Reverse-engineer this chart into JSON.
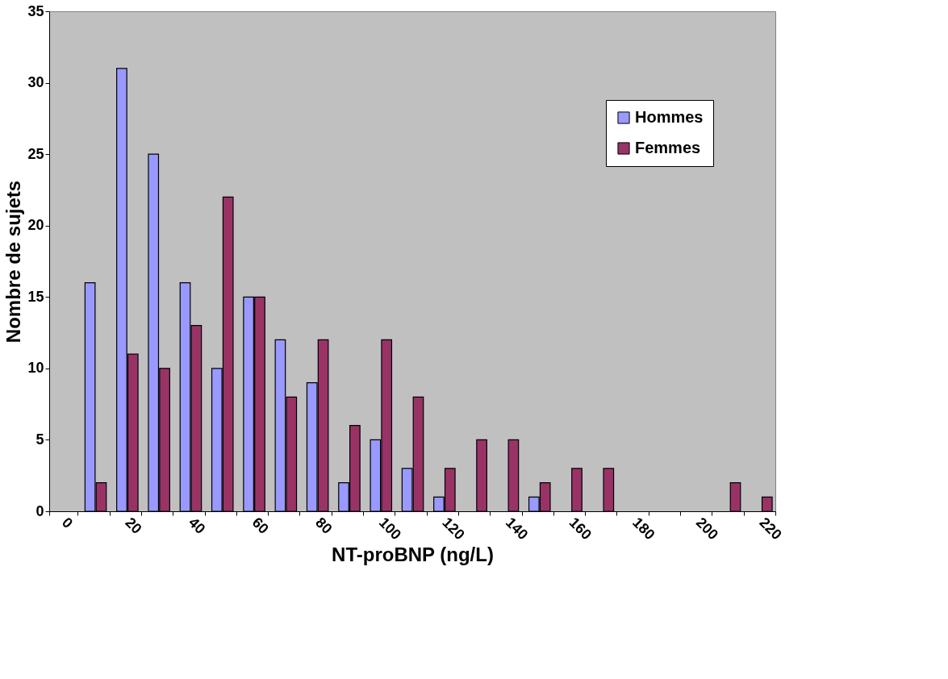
{
  "chart_data": {
    "type": "bar",
    "xlabel": "NT-proBNP (ng/L)",
    "ylabel": "Nombre de sujets",
    "categories": [
      "0",
      null,
      "20",
      null,
      "40",
      null,
      "60",
      null,
      "80",
      null,
      "100",
      null,
      "120",
      null,
      "140",
      null,
      "160",
      null,
      "180",
      null,
      "200",
      null,
      "220"
    ],
    "series": [
      {
        "name": "Hommes",
        "color": "#9999ff",
        "values": [
          null,
          16,
          31,
          25,
          16,
          10,
          15,
          12,
          9,
          2,
          5,
          3,
          1,
          null,
          null,
          1,
          null,
          null,
          null,
          null,
          null,
          null,
          null
        ]
      },
      {
        "name": "Femmes",
        "color": "#993366",
        "values": [
          null,
          2,
          11,
          10,
          13,
          22,
          15,
          8,
          12,
          6,
          12,
          8,
          3,
          5,
          5,
          2,
          3,
          3,
          null,
          null,
          null,
          2,
          1
        ]
      }
    ],
    "ylim": [
      0,
      35
    ],
    "yticks": [
      0,
      5,
      10,
      15,
      20,
      25,
      30,
      35
    ],
    "grid": false,
    "legend": "top right"
  }
}
